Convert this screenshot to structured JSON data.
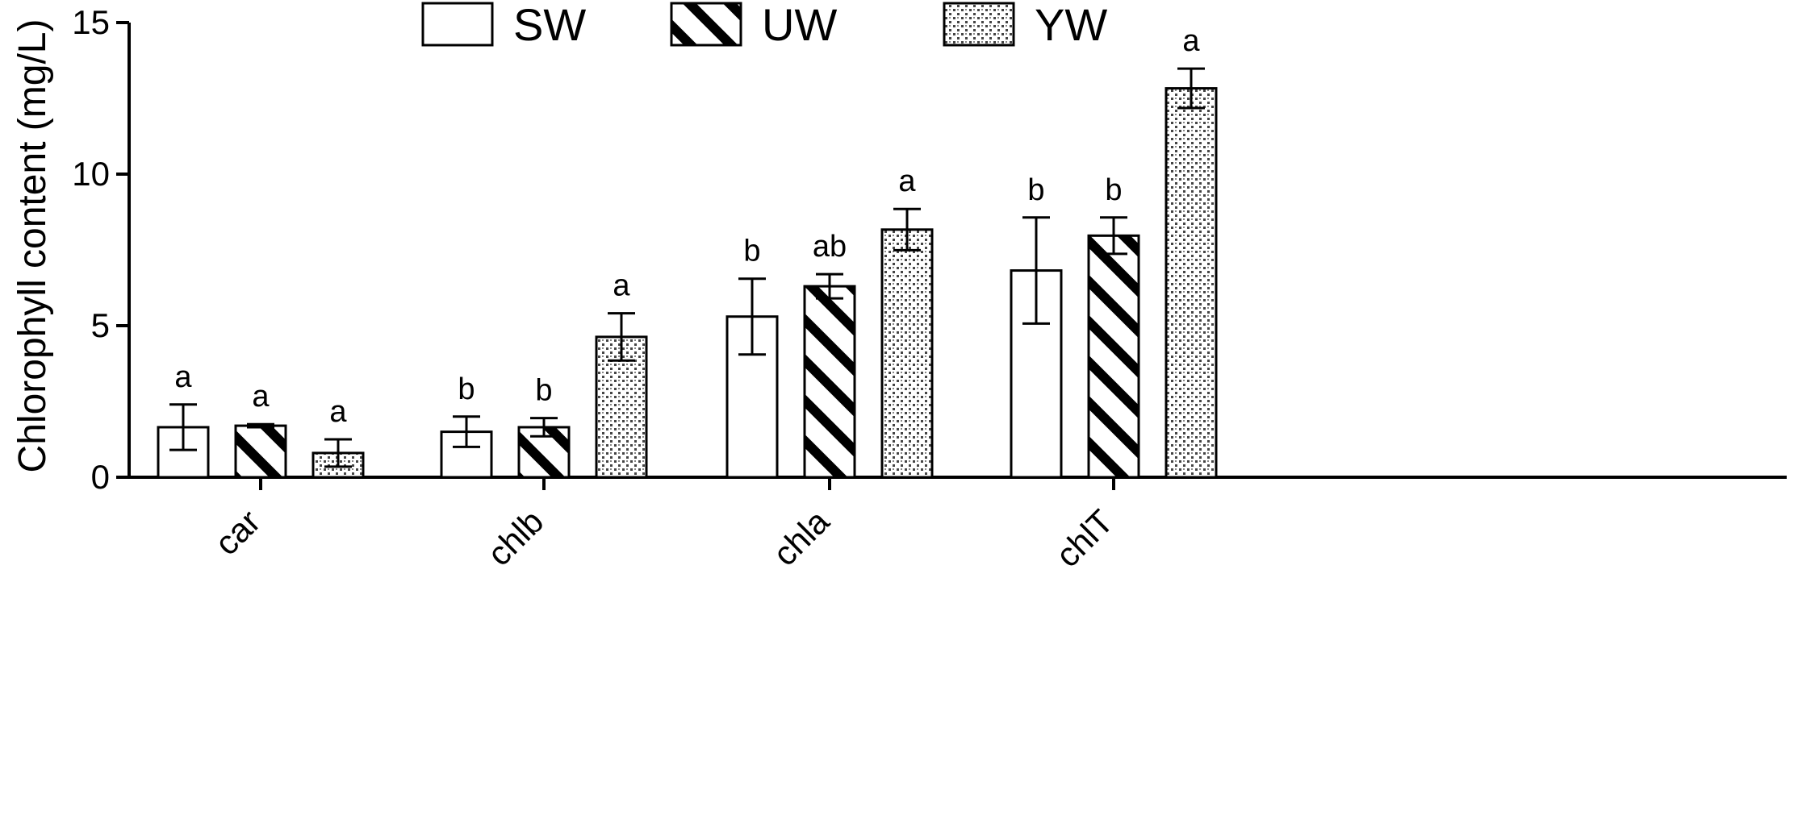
{
  "chart_data": {
    "type": "bar",
    "title": "",
    "xlabel": "",
    "ylabel": "Chlorophyll content (mg/L)",
    "ylim": [
      0,
      15
    ],
    "yticks": [
      "0",
      "5",
      "10",
      "15"
    ],
    "categories": [
      "car",
      "chlb",
      "chla",
      "chlT"
    ],
    "legend_position": "top",
    "grid": false,
    "series": [
      {
        "name": "SW",
        "fill": "plain",
        "color": "#ffffff",
        "values": [
          1.65,
          1.5,
          5.3,
          6.82
        ],
        "errors": [
          0.75,
          0.5,
          1.25,
          1.75
        ],
        "labels": [
          "a",
          "b",
          "b",
          "b"
        ]
      },
      {
        "name": "UW",
        "fill": "diagonal-hatch",
        "color": "#000000",
        "values": [
          1.7,
          1.65,
          6.3,
          7.97
        ],
        "errors": [
          0.05,
          0.3,
          0.4,
          0.6
        ],
        "labels": [
          "a",
          "b",
          "ab",
          "b"
        ]
      },
      {
        "name": "YW",
        "fill": "dotted",
        "color": "#000000",
        "values": [
          0.8,
          4.63,
          8.17,
          12.83
        ],
        "errors": [
          0.45,
          0.78,
          0.68,
          0.65
        ],
        "labels": [
          "a",
          "a",
          "a",
          "a"
        ]
      }
    ]
  }
}
